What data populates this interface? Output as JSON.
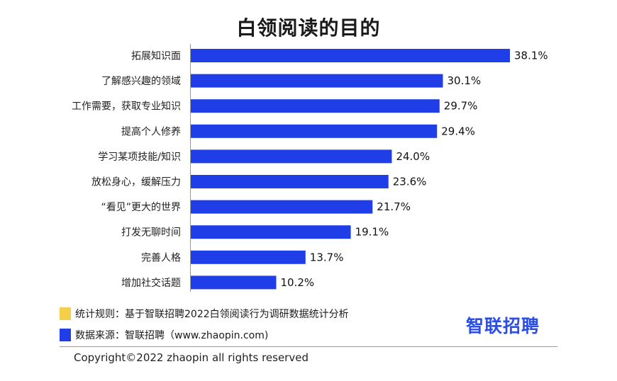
{
  "chart_data": {
    "type": "bar",
    "orientation": "horizontal",
    "title": "白领阅读的目的",
    "categories": [
      "拓展知识面",
      "了解感兴趣的领域",
      "工作需要，获取专业知识",
      "提高个人修养",
      "学习某项技能/知识",
      "放松身心，缓解压力",
      "“看见”更大的世界",
      "打发无聊时间",
      "完善人格",
      "增加社交话题"
    ],
    "values": [
      38.1,
      30.1,
      29.7,
      29.4,
      24.0,
      23.6,
      21.7,
      19.1,
      13.7,
      10.2
    ],
    "value_labels": [
      "38.1%",
      "30.1%",
      "29.7%",
      "29.4%",
      "24.0%",
      "23.6%",
      "21.7%",
      "19.1%",
      "13.7%",
      "10.2%"
    ],
    "xlim": [
      0,
      38.1
    ],
    "grid": false,
    "bar_color": "#1f3ee8"
  },
  "notes": [
    {
      "text": "统计规则：基于智联招聘2022白领阅读行为调研数据统计分析",
      "color": "#f5cf4a"
    },
    {
      "text": "数据来源：智联招聘（www.zhaopin.com)",
      "color": "#1f3ee8"
    }
  ],
  "logo": {
    "text": "智联招聘",
    "color": "#2b4ee6"
  },
  "copyright": "Copyright©2022 zhaopin all rights reserved"
}
